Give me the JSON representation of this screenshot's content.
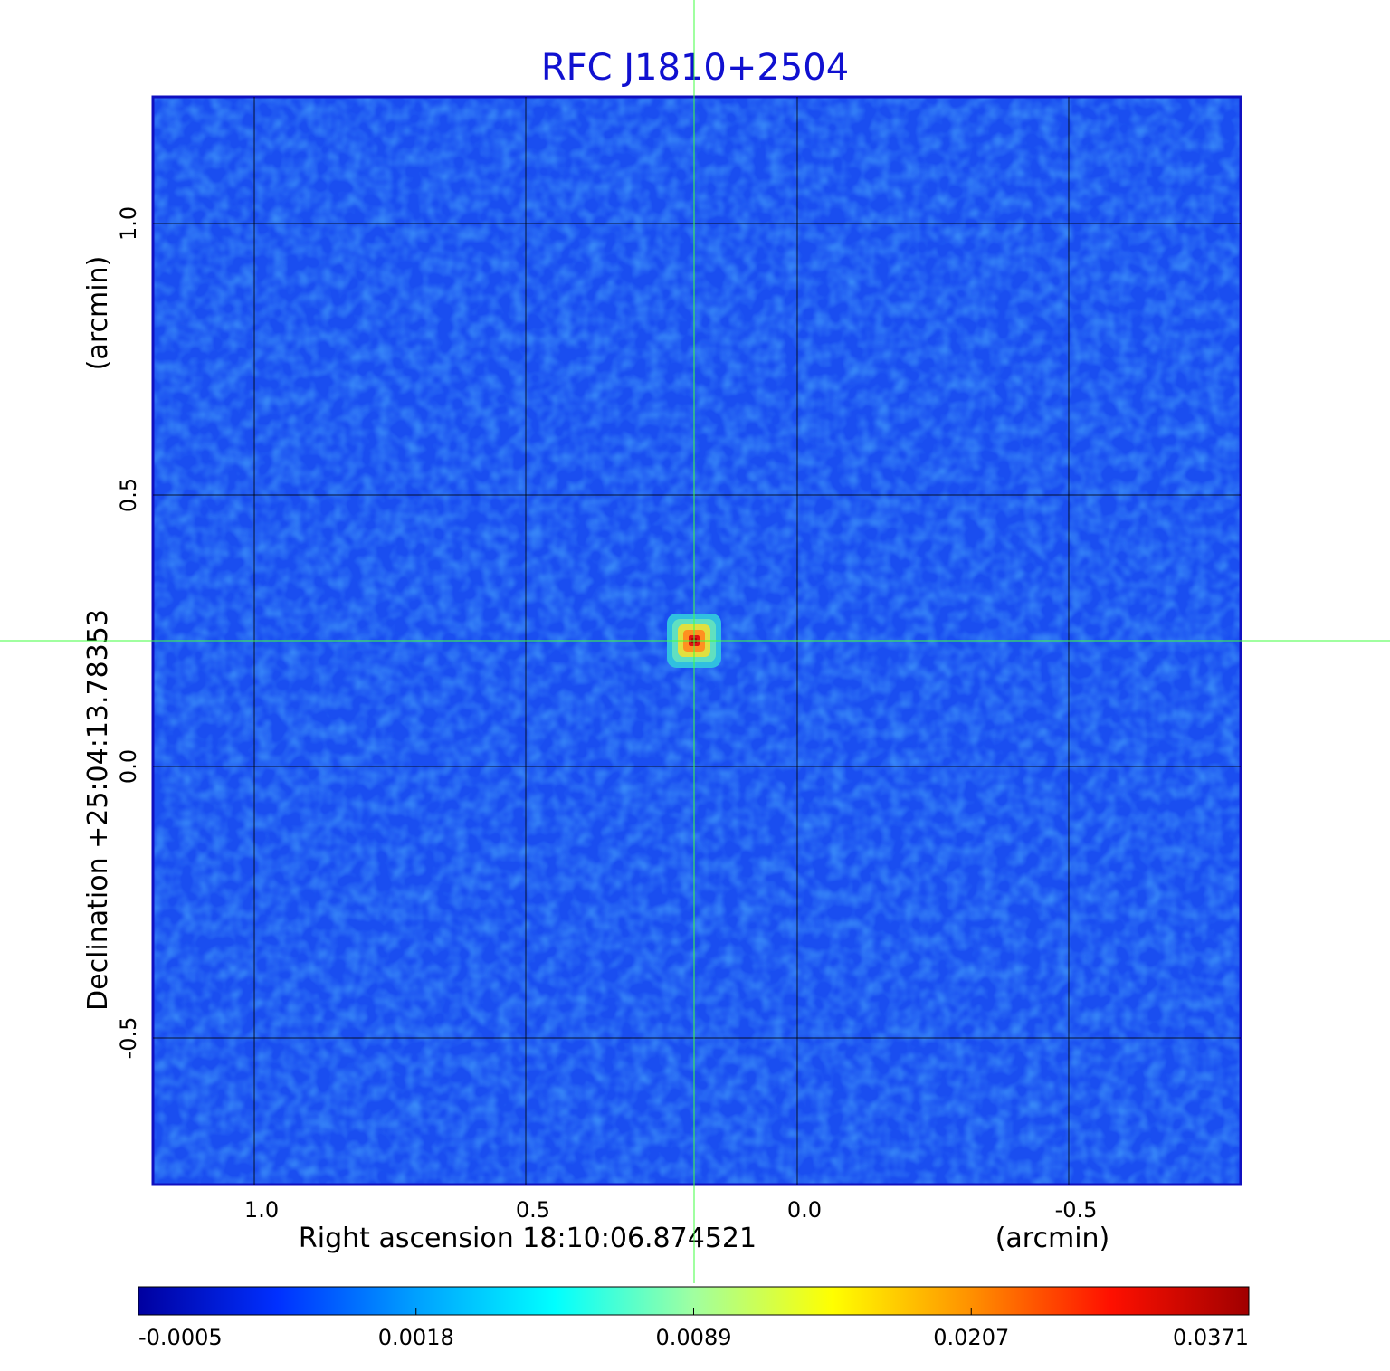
{
  "chart_data": {
    "type": "image",
    "title": "RFC J1810+2504",
    "xlabel": "Right ascension  18:10:06.874521",
    "xunit": "(arcmin)",
    "ylabel": "Declination  +25:04:13.78353",
    "yunit": "(arcmin)",
    "xlim": [
      1.1867,
      -0.8167
    ],
    "ylim": [
      -0.77,
      1.2333
    ],
    "xticks": [
      {
        "value": 1,
        "label": "1.0"
      },
      {
        "value": 0.5,
        "label": "0.5"
      },
      {
        "value": 0,
        "label": "0.0"
      },
      {
        "value": -0.5,
        "label": "-0.5"
      }
    ],
    "yticks": [
      {
        "value": 1,
        "label": "1.0"
      },
      {
        "value": 0.5,
        "label": "0.5"
      },
      {
        "value": 0,
        "label": "0.0"
      },
      {
        "value": -0.5,
        "label": "-0.5"
      }
    ],
    "grid": true,
    "source": {
      "x": 0.19,
      "y": 0.2317
    },
    "colorbar": {
      "ticks": [
        -0.0005,
        0.0018,
        0.0089,
        0.0207,
        0.0371
      ],
      "colors": [
        "#0000a0",
        "#0030ff",
        "#00a0ff",
        "#00ffff",
        "#a0ffa0",
        "#ffff00",
        "#ff9000",
        "#ff1000",
        "#a00000"
      ]
    }
  }
}
